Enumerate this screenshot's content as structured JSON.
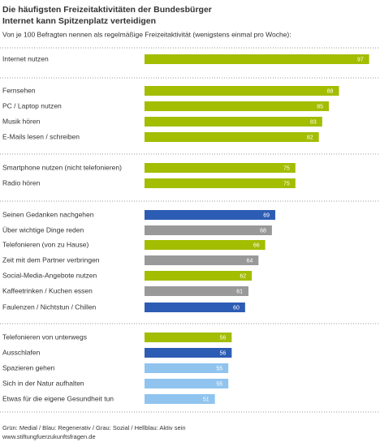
{
  "chart_data": {
    "type": "bar",
    "orientation": "horizontal",
    "title": "Die häufigsten Freizeitaktivitäten der Bundesbürger",
    "subtitle": "Internet kann Spitzenplatz verteidigen",
    "description": "Von je 100 Befragten nennen als regelmäßige Freizeitaktivität (wenigstens einmal pro Woche):",
    "categories": [
      "Internet nutzen",
      "Fernsehen",
      "PC / Laptop nutzen",
      "Musik hören",
      "E-Mails lesen / schreiben",
      "Smartphone nutzen (nicht telefonieren)",
      "Radio hören",
      "Seinen Gedanken nachgehen",
      "Über wichtige Dinge reden",
      "Telefonieren (von zu Hause)",
      "Zeit mit dem Partner verbringen",
      "Social-Media-Angebote nutzen",
      "Kaffeetrinken / Kuchen essen",
      "Faulenzen / Nichtstun / Chillen",
      "Telefonieren von unterwegs",
      "Ausschlafen",
      "Spazieren gehen",
      "Sich in der Natur aufhalten",
      "Etwas für die eigene Gesundheit tun"
    ],
    "values": [
      97,
      88,
      85,
      83,
      82,
      75,
      75,
      69,
      68,
      66,
      64,
      62,
      61,
      60,
      56,
      56,
      55,
      55,
      51
    ],
    "colors": [
      "#a3bd00",
      "#a3bd00",
      "#a3bd00",
      "#a3bd00",
      "#a3bd00",
      "#a3bd00",
      "#a3bd00",
      "#2d5cb4",
      "#999999",
      "#a3bd00",
      "#999999",
      "#a3bd00",
      "#999999",
      "#2d5cb4",
      "#a3bd00",
      "#2d5cb4",
      "#90c4ef",
      "#90c4ef",
      "#90c4ef"
    ],
    "xlim": [
      30,
      100
    ],
    "note": "Grün: Medial / Blau: Regenerativ / Grau: Sozial / Hellblau: Aktiv sein",
    "source": "www.stiftungfuerzukunftsfragen.de"
  }
}
